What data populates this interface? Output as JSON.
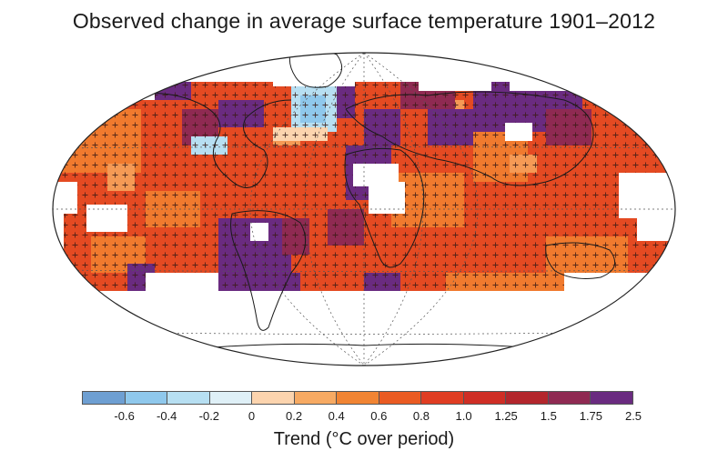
{
  "title": "Observed change in average surface temperature 1901–2012",
  "legend": {
    "label": "Trend (°C over period)",
    "ticks": [
      "-0.6",
      "-0.4",
      "-0.2",
      "0",
      "0.2",
      "0.4",
      "0.6",
      "0.8",
      "1.0",
      "1.25",
      "1.5",
      "1.75",
      "2.5"
    ],
    "colors": [
      "#6e9fd2",
      "#8fc8ec",
      "#b7dff2",
      "#dff0f7",
      "#fcd4ae",
      "#f7aa63",
      "#f18433",
      "#ea5b22",
      "#e03d22",
      "#cf2e25",
      "#b3262c",
      "#8f2a52",
      "#6a2b80"
    ]
  },
  "map": {
    "projection": "Robinson",
    "missing_data_color": "#ffffff",
    "significance_marker": "+",
    "dominant_color": "#e44a22"
  }
}
